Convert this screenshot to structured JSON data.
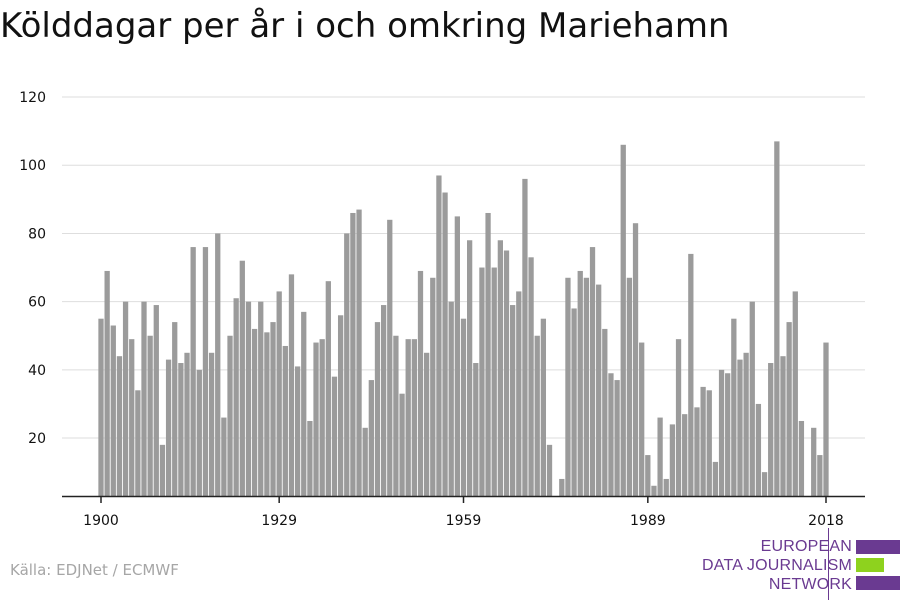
{
  "title": "Kölddagar per år i och omkring Mariehamn",
  "source": "Källa: EDJNet / ECMWF",
  "logo": {
    "lines": [
      "EUROPEAN",
      "DATA JOURNALISM",
      "NETWORK"
    ],
    "colors": {
      "purple": "#6a3a91",
      "green": "#8ed21e"
    }
  },
  "colors": {
    "bar": "#9b9b9b",
    "grid": "#dedede",
    "axis": "#222222",
    "tick_text": "#111111"
  },
  "chart_data": {
    "type": "bar",
    "title": "Kölddagar per år i och omkring Mariehamn",
    "xlabel": "",
    "ylabel": "",
    "x_start": 1900,
    "x_end": 2018,
    "x_ticks": [
      1900,
      1929,
      1959,
      1989,
      2018
    ],
    "y_ticks": [
      20,
      40,
      60,
      80,
      100,
      120
    ],
    "ylim": [
      3,
      125
    ],
    "grid": true,
    "years": [
      1900,
      1901,
      1902,
      1903,
      1904,
      1905,
      1906,
      1907,
      1908,
      1909,
      1910,
      1911,
      1912,
      1913,
      1914,
      1915,
      1916,
      1917,
      1918,
      1919,
      1920,
      1921,
      1922,
      1923,
      1924,
      1925,
      1926,
      1927,
      1928,
      1929,
      1930,
      1931,
      1932,
      1933,
      1934,
      1935,
      1936,
      1937,
      1938,
      1939,
      1940,
      1941,
      1942,
      1943,
      1944,
      1945,
      1946,
      1947,
      1948,
      1949,
      1950,
      1951,
      1952,
      1953,
      1954,
      1955,
      1956,
      1957,
      1958,
      1959,
      1960,
      1961,
      1962,
      1963,
      1964,
      1965,
      1966,
      1967,
      1968,
      1969,
      1970,
      1971,
      1972,
      1973,
      1974,
      1975,
      1976,
      1977,
      1978,
      1979,
      1980,
      1981,
      1982,
      1983,
      1984,
      1985,
      1986,
      1987,
      1988,
      1989,
      1990,
      1991,
      1992,
      1993,
      1994,
      1995,
      1996,
      1997,
      1998,
      1999,
      2000,
      2001,
      2002,
      2003,
      2004,
      2005,
      2006,
      2007,
      2008,
      2009,
      2010,
      2011,
      2012,
      2013,
      2014,
      2015,
      2016,
      2017,
      2018
    ],
    "values": [
      55,
      69,
      53,
      44,
      60,
      49,
      34,
      60,
      50,
      59,
      18,
      43,
      54,
      42,
      45,
      76,
      40,
      76,
      45,
      80,
      26,
      50,
      61,
      72,
      60,
      52,
      60,
      51,
      54,
      63,
      47,
      68,
      41,
      57,
      25,
      48,
      49,
      66,
      38,
      56,
      80,
      86,
      87,
      23,
      37,
      54,
      59,
      84,
      50,
      33,
      49,
      49,
      69,
      45,
      67,
      97,
      92,
      60,
      85,
      55,
      78,
      42,
      70,
      86,
      70,
      78,
      75,
      59,
      63,
      96,
      73,
      50,
      55,
      18,
      3,
      8,
      67,
      58,
      69,
      67,
      76,
      65,
      52,
      39,
      37,
      106,
      67,
      83,
      48,
      15,
      6,
      26,
      8,
      24,
      49,
      27,
      74,
      29,
      35,
      34,
      13,
      40,
      39,
      55,
      43,
      45,
      60,
      30,
      10,
      42,
      107,
      44,
      54,
      63,
      25,
      3,
      23,
      15,
      48
    ]
  }
}
